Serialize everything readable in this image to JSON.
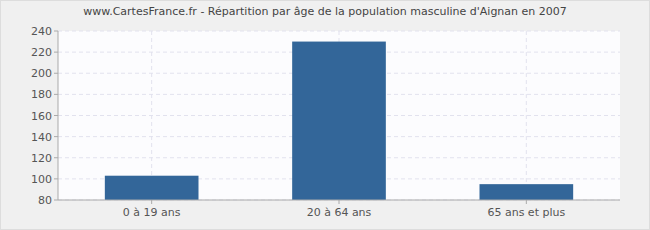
{
  "chart_data": {
    "type": "bar",
    "title": "www.CartesFrance.fr - Répartition par âge de la population masculine d'Aignan en 2007",
    "categories": [
      "0 à 19 ans",
      "20 à 64 ans",
      "65 ans et plus"
    ],
    "values": [
      103,
      230,
      95
    ],
    "color": "#336699",
    "ylim": [
      80,
      240
    ],
    "yticks": [
      80,
      100,
      120,
      140,
      160,
      180,
      200,
      220,
      240
    ],
    "grid": true
  }
}
